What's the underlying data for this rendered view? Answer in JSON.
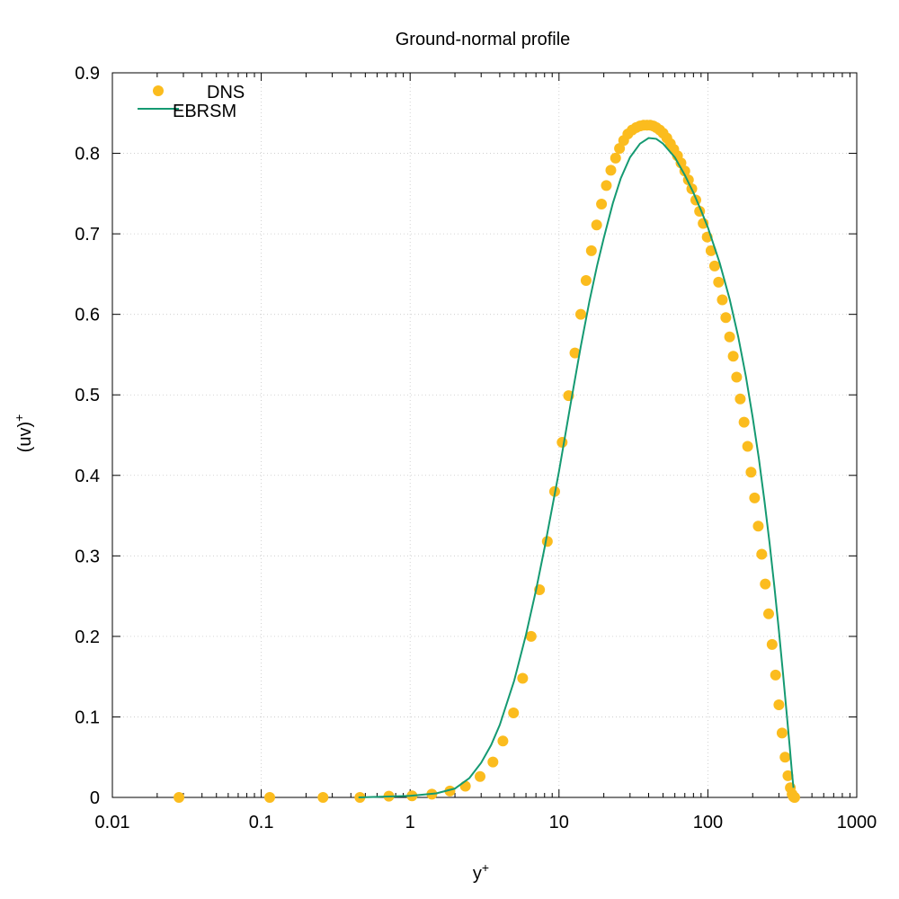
{
  "chart_data": {
    "type": "scatter",
    "title": "Ground-normal profile",
    "xlabel": "y",
    "xlabel_sup": "+",
    "ylabel": "(uv)",
    "ylabel_sup": "+",
    "xscale": "log",
    "xlim": [
      0.01,
      1000
    ],
    "ylim": [
      0,
      0.9
    ],
    "grid": true,
    "legend_position": "top-left",
    "xticks": [
      0.01,
      0.1,
      1,
      10,
      100,
      1000
    ],
    "xtick_labels": [
      "0.01",
      "0.1",
      "1",
      "10",
      "100",
      "1000"
    ],
    "yticks": [
      0,
      0.1,
      0.2,
      0.3,
      0.4,
      0.5,
      0.6,
      0.7,
      0.8,
      0.9
    ],
    "ytick_labels": [
      "0",
      "0.1",
      "0.2",
      "0.3",
      "0.4",
      "0.5",
      "0.6",
      "0.7",
      "0.8",
      "0.9"
    ],
    "series": [
      {
        "name": "DNS",
        "style": "points",
        "color": "#fbbc1e",
        "x": [
          0.028,
          0.114,
          0.26,
          0.46,
          0.72,
          1.03,
          1.4,
          1.85,
          2.35,
          2.95,
          3.6,
          4.2,
          4.95,
          5.7,
          6.5,
          7.4,
          8.35,
          9.35,
          10.5,
          11.6,
          12.8,
          14.0,
          15.2,
          16.5,
          17.9,
          19.3,
          20.8,
          22.3,
          24.0,
          25.5,
          27.2,
          29.0,
          31.0,
          33.0,
          35.0,
          37.0,
          39.0,
          41.0,
          43.0,
          45.0,
          47.5,
          50.0,
          53.0,
          56.0,
          59.0,
          62.5,
          66.0,
          70.0,
          74.0,
          78.0,
          83.0,
          88.0,
          93.0,
          99.0,
          105.0,
          111.0,
          118.0,
          125.0,
          132.0,
          140.0,
          148.0,
          156.0,
          165.0,
          175.0,
          185.0,
          195.0,
          206.0,
          218.0,
          230.0,
          243.0,
          256.0,
          270.0,
          285.0,
          300.0,
          315.0,
          330.0,
          345.0,
          358.0,
          368.0,
          375.0,
          380.0,
          383.0
        ],
        "y": [
          0.0,
          0.0,
          0.0,
          0.0,
          0.0015,
          0.002,
          0.004,
          0.008,
          0.014,
          0.026,
          0.044,
          0.07,
          0.105,
          0.148,
          0.2,
          0.258,
          0.318,
          0.38,
          0.441,
          0.499,
          0.552,
          0.6,
          0.642,
          0.679,
          0.711,
          0.737,
          0.76,
          0.779,
          0.794,
          0.806,
          0.816,
          0.824,
          0.829,
          0.832,
          0.834,
          0.835,
          0.835,
          0.835,
          0.834,
          0.832,
          0.829,
          0.825,
          0.819,
          0.812,
          0.805,
          0.797,
          0.788,
          0.778,
          0.767,
          0.756,
          0.742,
          0.728,
          0.713,
          0.696,
          0.679,
          0.66,
          0.64,
          0.618,
          0.596,
          0.572,
          0.548,
          0.522,
          0.495,
          0.466,
          0.436,
          0.404,
          0.372,
          0.337,
          0.302,
          0.265,
          0.228,
          0.19,
          0.152,
          0.115,
          0.08,
          0.05,
          0.027,
          0.012,
          0.004,
          0.001,
          0.0002,
          0.0
        ]
      },
      {
        "name": "EBRSM",
        "style": "line",
        "color": "#159a72",
        "x": [
          0.45,
          1.0,
          1.5,
          2.0,
          2.5,
          3.0,
          3.5,
          4.0,
          5.0,
          6.0,
          7.0,
          8.0,
          9.0,
          10.0,
          12.0,
          14.0,
          16.0,
          18.0,
          20.0,
          23.0,
          26.0,
          30.0,
          35.0,
          40.0,
          45.0,
          50.0,
          60.0,
          70.0,
          80.0,
          90.0,
          100.0,
          120.0,
          140.0,
          160.0,
          180.0,
          200.0,
          220.0,
          240.0,
          260.0,
          280.0,
          300.0,
          320.0,
          340.0,
          355.0,
          365.0,
          372.0,
          376.0
        ],
        "y": [
          0.0,
          0.002,
          0.005,
          0.011,
          0.024,
          0.043,
          0.065,
          0.09,
          0.145,
          0.202,
          0.257,
          0.31,
          0.36,
          0.405,
          0.49,
          0.56,
          0.616,
          0.66,
          0.695,
          0.738,
          0.769,
          0.795,
          0.812,
          0.819,
          0.818,
          0.812,
          0.795,
          0.773,
          0.751,
          0.729,
          0.708,
          0.664,
          0.619,
          0.572,
          0.523,
          0.472,
          0.421,
          0.368,
          0.315,
          0.261,
          0.207,
          0.153,
          0.1,
          0.062,
          0.036,
          0.02,
          0.012
        ]
      }
    ]
  }
}
